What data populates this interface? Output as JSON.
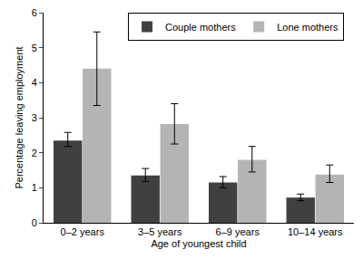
{
  "chart_data": {
    "type": "bar",
    "x_label": "Age of youngest child",
    "y_label": "Percentage leaving employment",
    "categories": [
      "0–2 years",
      "3–5 years",
      "6–9 years",
      "10–14 years"
    ],
    "series": [
      {
        "name": "Couple mothers",
        "color": "#404040",
        "values": [
          2.35,
          1.35,
          1.15,
          0.72
        ],
        "error_plus": [
          0.23,
          0.2,
          0.17,
          0.1
        ],
        "error_minus": [
          0.17,
          0.17,
          0.15,
          0.09
        ]
      },
      {
        "name": "Lone mothers",
        "color": "#b4b4b4",
        "values": [
          4.4,
          2.82,
          1.8,
          1.38
        ],
        "error_plus": [
          1.05,
          0.58,
          0.38,
          0.27
        ],
        "error_minus": [
          1.05,
          0.57,
          0.35,
          0.23
        ]
      }
    ],
    "ylim": [
      0,
      6
    ],
    "yticks": [
      0,
      1,
      2,
      3,
      4,
      5,
      6
    ],
    "grid": false,
    "legend": "top"
  }
}
